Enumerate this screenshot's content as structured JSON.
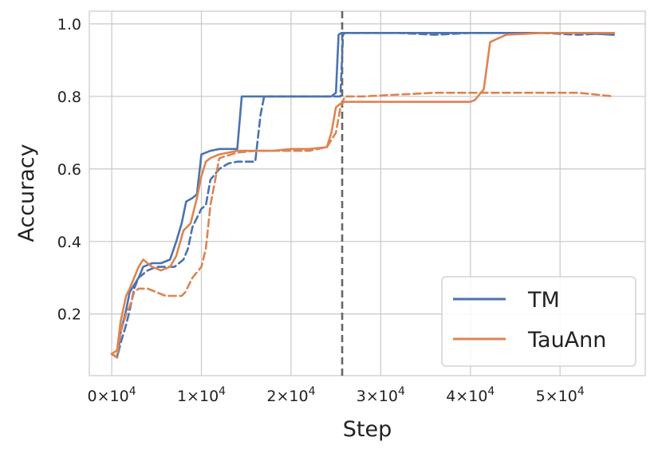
{
  "chart_data": {
    "type": "line",
    "xlabel": "Step",
    "ylabel": "Accuracy",
    "xlim": [
      -2500,
      59500
    ],
    "ylim": [
      0.03,
      1.035
    ],
    "x_ticks": [
      0,
      10000,
      20000,
      30000,
      40000,
      50000
    ],
    "x_tick_labels": [
      {
        "mant": "0×10",
        "exp": "4"
      },
      {
        "mant": "1×10",
        "exp": "4"
      },
      {
        "mant": "2×10",
        "exp": "4"
      },
      {
        "mant": "3×10",
        "exp": "4"
      },
      {
        "mant": "4×10",
        "exp": "4"
      },
      {
        "mant": "5×10",
        "exp": "4"
      }
    ],
    "y_ticks": [
      0.2,
      0.4,
      0.6,
      0.8,
      1.0
    ],
    "y_tick_labels": [
      "0.2",
      "0.4",
      "0.6",
      "0.8",
      "1.0"
    ],
    "grid": true,
    "legend_position": "bottom-right",
    "legend": [
      "TM",
      "TauAnn"
    ],
    "vline": {
      "x": 25700,
      "color": "#666666",
      "style": "dashed"
    },
    "colors": {
      "TM": "#4c72b0",
      "TauAnn": "#dd8452"
    },
    "series": [
      {
        "name": "TM",
        "style": "solid",
        "color": "#4c72b0",
        "x": [
          0,
          600,
          1000,
          1600,
          2000,
          2500,
          3000,
          3500,
          4500,
          5500,
          6500,
          7200,
          7800,
          8300,
          9000,
          9500,
          10000,
          11000,
          12000,
          13000,
          14000,
          14500,
          15000,
          16000,
          18000,
          20000,
          22000,
          24500,
          25000,
          25300,
          25600,
          26000,
          28000,
          32000,
          36000,
          40000,
          44000,
          48000,
          52000,
          56000
        ],
        "y": [
          0.09,
          0.08,
          0.15,
          0.21,
          0.26,
          0.28,
          0.3,
          0.33,
          0.34,
          0.34,
          0.35,
          0.4,
          0.45,
          0.51,
          0.52,
          0.53,
          0.64,
          0.65,
          0.655,
          0.655,
          0.655,
          0.8,
          0.8,
          0.8,
          0.8,
          0.8,
          0.8,
          0.8,
          0.81,
          0.97,
          0.975,
          0.975,
          0.975,
          0.975,
          0.975,
          0.975,
          0.975,
          0.975,
          0.975,
          0.97
        ]
      },
      {
        "name": "TM",
        "style": "dashed",
        "color": "#4c72b0",
        "x": [
          0,
          600,
          1000,
          1600,
          2000,
          2500,
          3000,
          4000,
          5000,
          6000,
          7000,
          8000,
          8500,
          9000,
          10000,
          10500,
          11000,
          12000,
          13000,
          14000,
          15000,
          16000,
          16600,
          17000,
          18000,
          20000,
          22000,
          24000,
          25000,
          25500,
          25800,
          26000,
          28000,
          32000,
          36000,
          40000,
          44000,
          48000,
          52000,
          56000
        ],
        "y": [
          0.09,
          0.08,
          0.12,
          0.17,
          0.21,
          0.27,
          0.3,
          0.32,
          0.33,
          0.33,
          0.33,
          0.35,
          0.38,
          0.44,
          0.49,
          0.5,
          0.57,
          0.6,
          0.615,
          0.62,
          0.62,
          0.62,
          0.75,
          0.8,
          0.8,
          0.8,
          0.8,
          0.8,
          0.8,
          0.8,
          0.97,
          0.975,
          0.975,
          0.975,
          0.97,
          0.975,
          0.975,
          0.975,
          0.97,
          0.975
        ]
      },
      {
        "name": "TauAnn",
        "style": "solid",
        "color": "#dd8452",
        "x": [
          0,
          600,
          1000,
          1600,
          2000,
          2500,
          3000,
          3500,
          4500,
          5500,
          6500,
          7200,
          8000,
          8800,
          9500,
          10000,
          10500,
          11000,
          12000,
          14000,
          16000,
          18000,
          20000,
          22000,
          24000,
          24500,
          25000,
          25500,
          26000,
          28000,
          32000,
          36000,
          40000,
          40500,
          41500,
          42200,
          44000,
          48000,
          52000,
          56000
        ],
        "y": [
          0.09,
          0.1,
          0.18,
          0.25,
          0.27,
          0.3,
          0.33,
          0.35,
          0.33,
          0.32,
          0.33,
          0.36,
          0.43,
          0.45,
          0.52,
          0.58,
          0.62,
          0.63,
          0.64,
          0.65,
          0.65,
          0.65,
          0.655,
          0.655,
          0.66,
          0.7,
          0.77,
          0.78,
          0.785,
          0.785,
          0.785,
          0.785,
          0.785,
          0.79,
          0.82,
          0.95,
          0.97,
          0.975,
          0.975,
          0.975
        ]
      },
      {
        "name": "TauAnn",
        "style": "dashed",
        "color": "#dd8452",
        "x": [
          0,
          600,
          1000,
          1600,
          2000,
          2500,
          3000,
          4000,
          5000,
          6000,
          7000,
          7800,
          8200,
          9000,
          10000,
          10500,
          11000,
          12000,
          14000,
          16000,
          18000,
          20000,
          22000,
          24000,
          25000,
          25500,
          26000,
          28000,
          32000,
          36000,
          40000,
          44000,
          48000,
          52000,
          56000
        ],
        "y": [
          0.09,
          0.08,
          0.15,
          0.2,
          0.22,
          0.26,
          0.27,
          0.27,
          0.26,
          0.25,
          0.25,
          0.25,
          0.26,
          0.3,
          0.33,
          0.38,
          0.5,
          0.63,
          0.645,
          0.65,
          0.65,
          0.65,
          0.65,
          0.66,
          0.7,
          0.77,
          0.8,
          0.8,
          0.805,
          0.81,
          0.81,
          0.81,
          0.81,
          0.81,
          0.8
        ]
      }
    ]
  }
}
